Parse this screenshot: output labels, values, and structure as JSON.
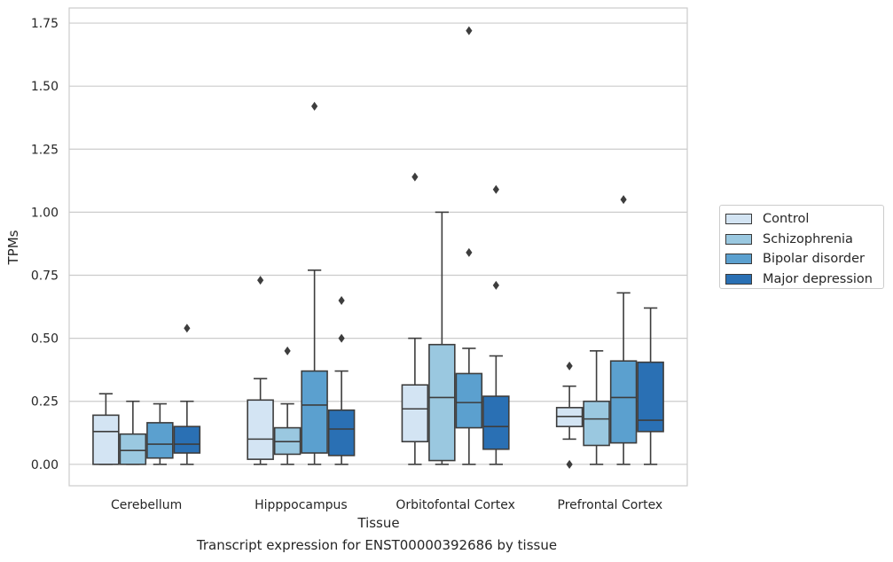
{
  "chart_data": {
    "type": "box",
    "xlabel": "Tissue",
    "ylabel": "TPMs",
    "caption": "Transcript expression for ENST00000392686 by tissue",
    "ylim": [
      -0.085,
      1.81
    ],
    "yticks": [
      "0.00",
      "0.25",
      "0.50",
      "0.75",
      "1.00",
      "1.25",
      "1.50",
      "1.75"
    ],
    "grid": true,
    "legend_position": "right",
    "categories": [
      "Cerebellum",
      "Hipppocampus",
      "Orbitofontal Cortex",
      "Prefrontal Cortex"
    ],
    "series": [
      {
        "name": "Control",
        "color": "#d3e4f3",
        "boxes": [
          {
            "whisker_low": 0.0,
            "q1": 0.0,
            "median": 0.13,
            "q3": 0.195,
            "whisker_high": 0.28,
            "outliers": []
          },
          {
            "whisker_low": 0.0,
            "q1": 0.02,
            "median": 0.1,
            "q3": 0.255,
            "whisker_high": 0.34,
            "outliers": [
              0.73
            ]
          },
          {
            "whisker_low": 0.0,
            "q1": 0.09,
            "median": 0.22,
            "q3": 0.315,
            "whisker_high": 0.5,
            "outliers": [
              1.14
            ]
          },
          {
            "whisker_low": 0.1,
            "q1": 0.15,
            "median": 0.19,
            "q3": 0.225,
            "whisker_high": 0.31,
            "outliers": [
              0.39,
              0.0
            ]
          }
        ]
      },
      {
        "name": "Schizophrenia",
        "color": "#9ac8e0",
        "boxes": [
          {
            "whisker_low": 0.0,
            "q1": 0.0,
            "median": 0.055,
            "q3": 0.12,
            "whisker_high": 0.25,
            "outliers": []
          },
          {
            "whisker_low": 0.0,
            "q1": 0.04,
            "median": 0.09,
            "q3": 0.145,
            "whisker_high": 0.24,
            "outliers": [
              0.45
            ]
          },
          {
            "whisker_low": 0.0,
            "q1": 0.015,
            "median": 0.265,
            "q3": 0.475,
            "whisker_high": 1.0,
            "outliers": []
          },
          {
            "whisker_low": 0.0,
            "q1": 0.075,
            "median": 0.18,
            "q3": 0.25,
            "whisker_high": 0.45,
            "outliers": []
          }
        ]
      },
      {
        "name": "Bipolar disorder",
        "color": "#5ba0cf",
        "boxes": [
          {
            "whisker_low": 0.0,
            "q1": 0.025,
            "median": 0.08,
            "q3": 0.165,
            "whisker_high": 0.24,
            "outliers": []
          },
          {
            "whisker_low": 0.0,
            "q1": 0.045,
            "median": 0.235,
            "q3": 0.37,
            "whisker_high": 0.77,
            "outliers": [
              1.42
            ]
          },
          {
            "whisker_low": 0.0,
            "q1": 0.145,
            "median": 0.245,
            "q3": 0.36,
            "whisker_high": 0.46,
            "outliers": [
              1.72,
              0.84
            ]
          },
          {
            "whisker_low": 0.0,
            "q1": 0.085,
            "median": 0.265,
            "q3": 0.41,
            "whisker_high": 0.68,
            "outliers": [
              1.05
            ]
          }
        ]
      },
      {
        "name": "Major depression",
        "color": "#2a70b4",
        "boxes": [
          {
            "whisker_low": 0.0,
            "q1": 0.045,
            "median": 0.08,
            "q3": 0.15,
            "whisker_high": 0.25,
            "outliers": [
              0.54
            ]
          },
          {
            "whisker_low": 0.0,
            "q1": 0.035,
            "median": 0.14,
            "q3": 0.215,
            "whisker_high": 0.37,
            "outliers": [
              0.65,
              0.5
            ]
          },
          {
            "whisker_low": 0.0,
            "q1": 0.06,
            "median": 0.15,
            "q3": 0.27,
            "whisker_high": 0.43,
            "outliers": [
              1.09,
              0.71
            ]
          },
          {
            "whisker_low": 0.0,
            "q1": 0.13,
            "median": 0.175,
            "q3": 0.405,
            "whisker_high": 0.62,
            "outliers": []
          }
        ]
      }
    ]
  }
}
